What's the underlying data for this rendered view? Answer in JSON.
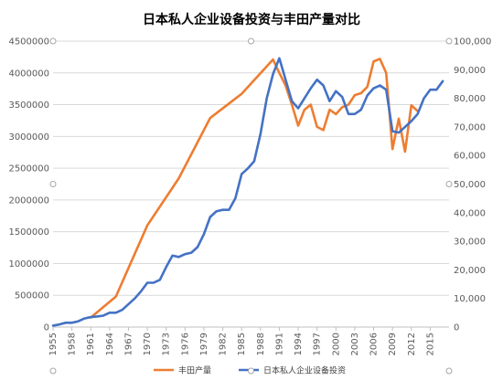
{
  "chart_data": {
    "type": "line",
    "title": "日本私人企业设备投资与丰田产量对比",
    "xlabel": "",
    "y_left": {
      "ylim": [
        0,
        4500000
      ],
      "ticks": [
        0,
        500000,
        1000000,
        1500000,
        2000000,
        2500000,
        3000000,
        3500000,
        4000000,
        4500000
      ],
      "tick_labels": [
        "0",
        "500000",
        "1000000",
        "1500000",
        "2000000",
        "2500000",
        "3000000",
        "3500000",
        "4000000",
        "4500000"
      ]
    },
    "y_right": {
      "ylim": [
        0,
        100000
      ],
      "ticks": [
        0,
        10000,
        20000,
        30000,
        40000,
        50000,
        60000,
        70000,
        80000,
        90000,
        100000
      ],
      "tick_labels": [
        "0",
        "10,000",
        "20,000",
        "30,000",
        "40,000",
        "50,000",
        "60,000",
        "70,000",
        "80,000",
        "90,000",
        "100,000"
      ]
    },
    "x_tick_labels": [
      "1955",
      "1958",
      "1961",
      "1964",
      "1967",
      "1970",
      "1973",
      "1976",
      "1979",
      "1982",
      "1985",
      "1988",
      "1991",
      "1994",
      "1997",
      "2000",
      "2003",
      "2006",
      "2009",
      "2012",
      "2015"
    ],
    "x_range": [
      1955,
      2018
    ],
    "grid": true,
    "legend_position": "bottom",
    "series": [
      {
        "name": "丰田产量",
        "axis": "left",
        "color": "#ED7D31",
        "points": [
          [
            1961,
            150000
          ],
          [
            1965,
            480000
          ],
          [
            1970,
            1600000
          ],
          [
            1975,
            2340000
          ],
          [
            1980,
            3290000
          ],
          [
            1985,
            3670000
          ],
          [
            1990,
            4210000
          ],
          [
            1991,
            4000000
          ],
          [
            1992,
            3800000
          ],
          [
            1993,
            3500000
          ],
          [
            1994,
            3170000
          ],
          [
            1995,
            3420000
          ],
          [
            1996,
            3500000
          ],
          [
            1997,
            3150000
          ],
          [
            1998,
            3100000
          ],
          [
            1999,
            3420000
          ],
          [
            2000,
            3350000
          ],
          [
            2001,
            3460000
          ],
          [
            2002,
            3500000
          ],
          [
            2003,
            3650000
          ],
          [
            2004,
            3680000
          ],
          [
            2005,
            3780000
          ],
          [
            2006,
            4180000
          ],
          [
            2007,
            4220000
          ],
          [
            2008,
            4000000
          ],
          [
            2009,
            2800000
          ],
          [
            2010,
            3280000
          ],
          [
            2011,
            2760000
          ],
          [
            2012,
            3490000
          ],
          [
            2013,
            3400000
          ]
        ]
      },
      {
        "name": "日本私人企业设备投资",
        "axis": "right",
        "color": "#4472C4",
        "points": [
          [
            1955,
            500
          ],
          [
            1956,
            900
          ],
          [
            1957,
            1500
          ],
          [
            1958,
            1500
          ],
          [
            1959,
            2000
          ],
          [
            1960,
            3000
          ],
          [
            1961,
            3500
          ],
          [
            1962,
            3700
          ],
          [
            1963,
            4000
          ],
          [
            1964,
            5000
          ],
          [
            1965,
            5000
          ],
          [
            1966,
            6000
          ],
          [
            1967,
            8000
          ],
          [
            1968,
            10000
          ],
          [
            1969,
            12500
          ],
          [
            1970,
            15500
          ],
          [
            1971,
            15500
          ],
          [
            1972,
            16500
          ],
          [
            1973,
            21000
          ],
          [
            1974,
            25000
          ],
          [
            1975,
            24500
          ],
          [
            1976,
            25500
          ],
          [
            1977,
            26000
          ],
          [
            1978,
            28000
          ],
          [
            1979,
            32500
          ],
          [
            1980,
            38500
          ],
          [
            1981,
            40500
          ],
          [
            1982,
            41000
          ],
          [
            1983,
            41000
          ],
          [
            1984,
            45000
          ],
          [
            1985,
            53500
          ],
          [
            1986,
            55500
          ],
          [
            1987,
            58000
          ],
          [
            1988,
            67500
          ],
          [
            1989,
            80000
          ],
          [
            1990,
            88500
          ],
          [
            1991,
            94000
          ],
          [
            1992,
            86500
          ],
          [
            1993,
            79000
          ],
          [
            1994,
            76500
          ],
          [
            1995,
            80000
          ],
          [
            1996,
            83500
          ],
          [
            1997,
            86500
          ],
          [
            1998,
            84500
          ],
          [
            1999,
            79000
          ],
          [
            2000,
            82500
          ],
          [
            2001,
            80500
          ],
          [
            2002,
            74500
          ],
          [
            2003,
            74500
          ],
          [
            2004,
            76000
          ],
          [
            2005,
            81000
          ],
          [
            2006,
            83500
          ],
          [
            2007,
            84500
          ],
          [
            2008,
            83000
          ],
          [
            2009,
            68500
          ],
          [
            2010,
            68000
          ],
          [
            2011,
            70000
          ],
          [
            2012,
            72000
          ],
          [
            2013,
            74500
          ],
          [
            2014,
            80000
          ],
          [
            2015,
            83000
          ],
          [
            2016,
            83000
          ],
          [
            2017,
            86000
          ]
        ]
      }
    ]
  }
}
